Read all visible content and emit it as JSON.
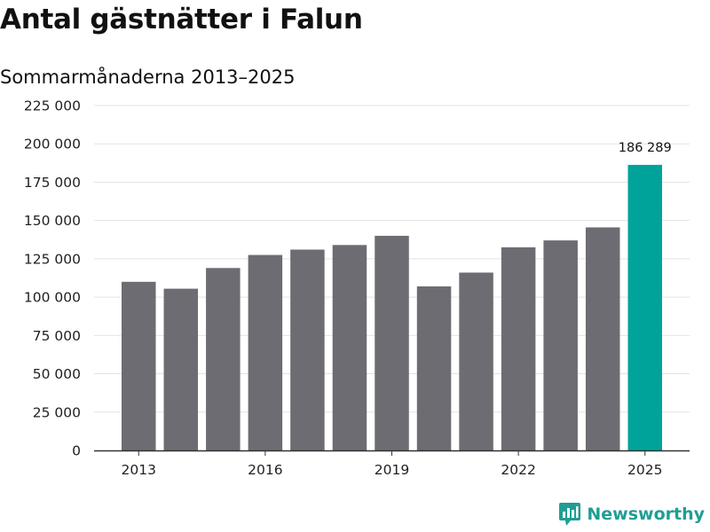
{
  "title": "Antal gästnätter i Falun",
  "subtitle": "Sommarmånaderna 2013–2025",
  "brand": {
    "name": "Newsworthy",
    "color": "#1f9e95",
    "icon": "newsworthy-logo-icon"
  },
  "colors": {
    "bar": "#6d6c72",
    "highlight": "#00a39a",
    "grid": "#e3e3e3",
    "axis": "#333333"
  },
  "chart_data": {
    "type": "bar",
    "title": "Antal gästnätter i Falun",
    "subtitle": "Sommarmånaderna 2013–2025",
    "xlabel": "",
    "ylabel": "",
    "categories": [
      "2013",
      "2014",
      "2015",
      "2016",
      "2017",
      "2018",
      "2019",
      "2020",
      "2021",
      "2022",
      "2023",
      "2024",
      "2025"
    ],
    "values": [
      110000,
      105500,
      119000,
      127500,
      131000,
      134000,
      140000,
      107000,
      116000,
      132500,
      137000,
      145500,
      186289
    ],
    "highlight_index": 12,
    "data_labels": [
      {
        "category": "2025",
        "text": "186 289"
      }
    ],
    "x_tick_labels": [
      "2013",
      "2016",
      "2019",
      "2022",
      "2025"
    ],
    "y_ticks": [
      0,
      25000,
      50000,
      75000,
      100000,
      125000,
      150000,
      175000,
      200000,
      225000
    ],
    "y_tick_labels": [
      "0",
      "25 000",
      "50 000",
      "75 000",
      "100 000",
      "125 000",
      "150 000",
      "175 000",
      "200 000",
      "225 000"
    ],
    "ylim": [
      0,
      225000
    ],
    "grid": true,
    "legend": "none"
  }
}
